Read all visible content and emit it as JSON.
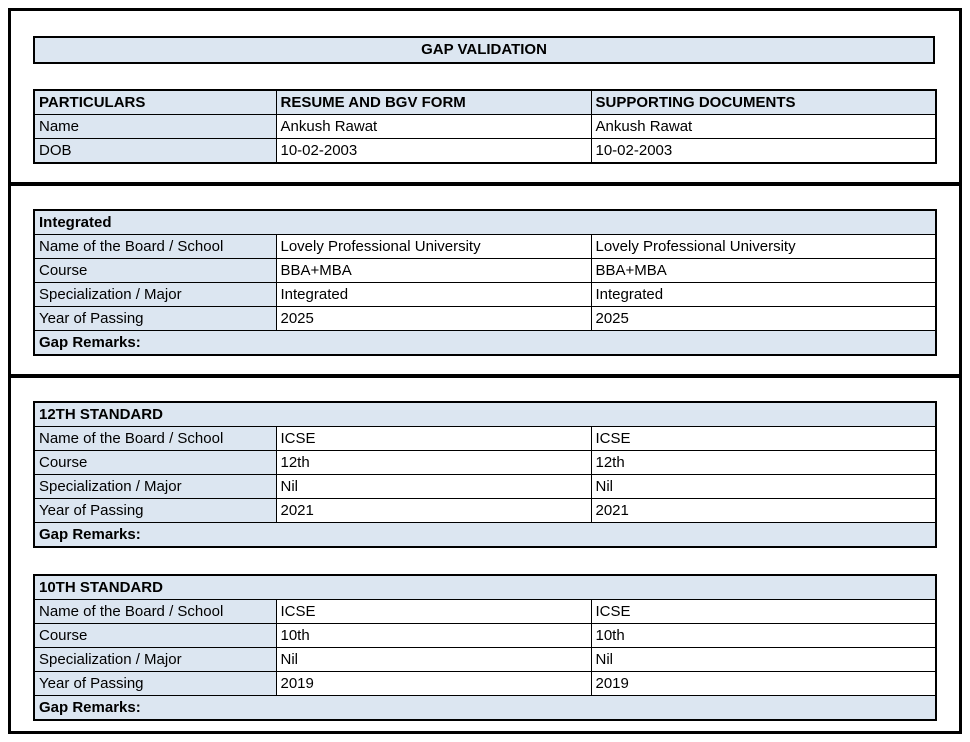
{
  "page": {
    "title": "GAP VALIDATION"
  },
  "colors": {
    "header_fill": "#dce6f1",
    "border": "#000000"
  },
  "personal_table": {
    "headers": [
      "PARTICULARS",
      "RESUME AND BGV FORM",
      "SUPPORTING DOCUMENTS"
    ],
    "rows": [
      {
        "label": "Name",
        "resume": "Ankush Rawat",
        "supporting": "Ankush Rawat"
      },
      {
        "label": "DOB",
        "resume": "10-02-2003",
        "supporting": "10-02-2003"
      }
    ]
  },
  "sections": [
    {
      "title": "Integrated",
      "rows": [
        {
          "label": "Name of the Board / School",
          "resume": "Lovely Professional University",
          "supporting": "Lovely Professional University"
        },
        {
          "label": "Course",
          "resume": "BBA+MBA",
          "supporting": "BBA+MBA"
        },
        {
          "label": "Specialization / Major",
          "resume": "Integrated",
          "supporting": "Integrated"
        },
        {
          "label": "Year of Passing",
          "resume": "2025",
          "supporting": "2025"
        }
      ],
      "footer": "Gap Remarks:"
    },
    {
      "title": "12TH STANDARD",
      "rows": [
        {
          "label": "Name of the Board / School",
          "resume": "ICSE",
          "supporting": "ICSE"
        },
        {
          "label": "Course",
          "resume": "12th",
          "supporting": "12th"
        },
        {
          "label": "Specialization / Major",
          "resume": "Nil",
          "supporting": "Nil"
        },
        {
          "label": "Year of Passing",
          "resume": "2021",
          "supporting": "2021"
        }
      ],
      "footer": "Gap Remarks:"
    },
    {
      "title": "10TH STANDARD",
      "rows": [
        {
          "label": "Name of the Board / School",
          "resume": "ICSE",
          "supporting": "ICSE"
        },
        {
          "label": "Course",
          "resume": "10th",
          "supporting": "10th"
        },
        {
          "label": "Specialization / Major",
          "resume": "Nil",
          "supporting": "Nil"
        },
        {
          "label": "Year of Passing",
          "resume": "2019",
          "supporting": "2019"
        }
      ],
      "footer": "Gap Remarks:"
    }
  ]
}
